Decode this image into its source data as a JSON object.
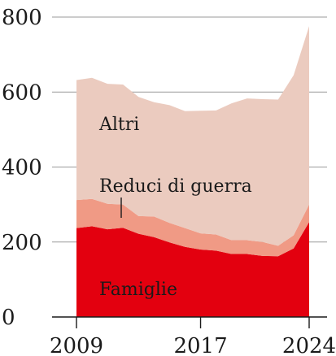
{
  "chart_data": {
    "type": "area",
    "stacked": true,
    "title": "",
    "xlabel": "",
    "ylabel": "",
    "x": [
      2009,
      2010,
      2011,
      2012,
      2013,
      2014,
      2015,
      2016,
      2017,
      2018,
      2019,
      2020,
      2021,
      2022,
      2023,
      2024
    ],
    "x_tick_labels": [
      "2009",
      "2017",
      "2024"
    ],
    "y_tick_labels": [
      "0",
      "200",
      "400",
      "600",
      "800"
    ],
    "ylim": [
      0,
      800
    ],
    "grid": true,
    "series": [
      {
        "name": "Famiglie",
        "color": "#e3000f",
        "values": [
          237,
          242,
          234,
          238,
          222,
          213,
          199,
          187,
          180,
          177,
          168,
          168,
          163,
          162,
          183,
          253
        ]
      },
      {
        "name": "Reduci di guerra",
        "color": "#f09a85",
        "values": [
          75,
          73,
          68,
          62,
          47,
          55,
          52,
          50,
          43,
          43,
          37,
          37,
          37,
          28,
          35,
          47
        ]
      },
      {
        "name": "Altri",
        "color": "#ebcbbf",
        "values": [
          320,
          323,
          320,
          320,
          318,
          305,
          314,
          312,
          327,
          331,
          365,
          378,
          381,
          390,
          427,
          476
        ]
      }
    ]
  }
}
